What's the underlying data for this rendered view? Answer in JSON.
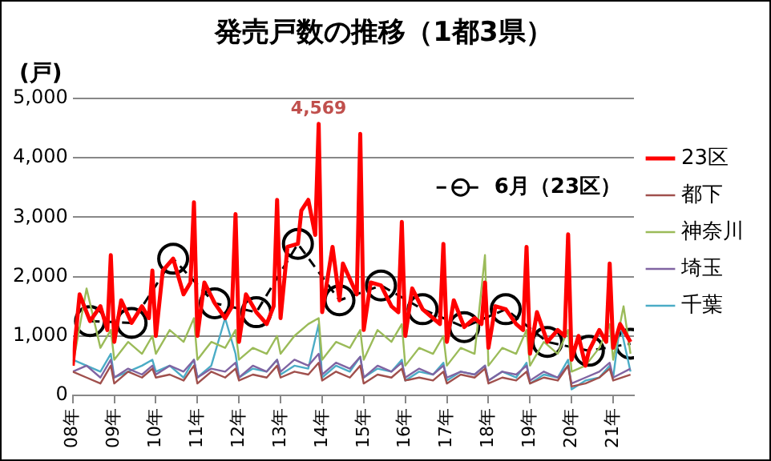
{
  "chart_data": {
    "type": "line",
    "title": "発売戸数の推移（1都3県）",
    "ylabel": "(戸)",
    "xlim": [
      "2008-01",
      "2021-07"
    ],
    "xticks": [
      {
        "value": "2008-01",
        "label": "08年"
      },
      {
        "value": "2009-01",
        "label": "09年"
      },
      {
        "value": "2010-01",
        "label": "10年"
      },
      {
        "value": "2011-01",
        "label": "11年"
      },
      {
        "value": "2012-01",
        "label": "12年"
      },
      {
        "value": "2013-01",
        "label": "13年"
      },
      {
        "value": "2014-01",
        "label": "14年"
      },
      {
        "value": "2015-01",
        "label": "15年"
      },
      {
        "value": "2016-01",
        "label": "16年"
      },
      {
        "value": "2017-01",
        "label": "17年"
      },
      {
        "value": "2018-01",
        "label": "18年"
      },
      {
        "value": "2019-01",
        "label": "19年"
      },
      {
        "value": "2020-01",
        "label": "20年"
      },
      {
        "value": "2021-01",
        "label": "21年"
      }
    ],
    "ylim": [
      0,
      5000
    ],
    "yticks": [
      {
        "value": 0,
        "label": "0"
      },
      {
        "value": 1000,
        "label": "1,000"
      },
      {
        "value": 2000,
        "label": "2,000"
      },
      {
        "value": 3000,
        "label": "3,000"
      },
      {
        "value": 4000,
        "label": "4,000"
      },
      {
        "value": 5000,
        "label": "5,000"
      }
    ],
    "grid": "y",
    "legend": "right",
    "marker": "none",
    "annotations": [
      {
        "text": "4,569",
        "x": "2013-12",
        "y": 4569
      }
    ],
    "series": [
      {
        "name": "23区",
        "color": "#ff0000",
        "x": [
          "2008-01",
          "2008-03",
          "2008-06",
          "2008-09",
          "2008-11",
          "2008-12",
          "2009-01",
          "2009-03",
          "2009-06",
          "2009-09",
          "2009-11",
          "2009-12",
          "2010-01",
          "2010-03",
          "2010-06",
          "2010-09",
          "2010-11",
          "2010-12",
          "2011-01",
          "2011-03",
          "2011-06",
          "2011-09",
          "2011-11",
          "2011-12",
          "2012-01",
          "2012-03",
          "2012-06",
          "2012-09",
          "2012-11",
          "2012-12",
          "2013-01",
          "2013-03",
          "2013-06",
          "2013-07",
          "2013-09",
          "2013-11",
          "2013-12",
          "2014-01",
          "2014-04",
          "2014-06",
          "2014-07",
          "2014-11",
          "2014-12",
          "2015-01",
          "2015-03",
          "2015-06",
          "2015-09",
          "2015-11",
          "2015-12",
          "2016-01",
          "2016-03",
          "2016-06",
          "2016-09",
          "2016-11",
          "2016-12",
          "2017-01",
          "2017-03",
          "2017-06",
          "2017-09",
          "2017-11",
          "2017-12",
          "2018-01",
          "2018-03",
          "2018-06",
          "2018-09",
          "2018-11",
          "2018-12",
          "2019-01",
          "2019-03",
          "2019-06",
          "2019-09",
          "2019-11",
          "2019-12",
          "2020-01",
          "2020-03",
          "2020-05",
          "2020-06",
          "2020-09",
          "2020-11",
          "2020-12",
          "2021-01",
          "2021-03",
          "2021-06"
        ],
        "values": [
          500,
          1700,
          1250,
          1500,
          1100,
          2360,
          900,
          1600,
          1220,
          1500,
          1300,
          2100,
          1000,
          2100,
          2300,
          1700,
          1900,
          3250,
          1000,
          1900,
          1550,
          1300,
          1500,
          3050,
          900,
          1700,
          1400,
          1200,
          1500,
          3290,
          1300,
          2500,
          2550,
          3110,
          3290,
          2700,
          4569,
          1400,
          2500,
          1600,
          2220,
          1700,
          4400,
          1100,
          1900,
          1850,
          1500,
          1400,
          2920,
          1000,
          1800,
          1450,
          1300,
          1200,
          2550,
          900,
          1600,
          1150,
          1300,
          1200,
          1900,
          800,
          1500,
          1450,
          1200,
          1100,
          2500,
          700,
          1400,
          900,
          1100,
          1000,
          2710,
          600,
          1000,
          500,
          750,
          1100,
          900,
          2220,
          800,
          1200,
          900
        ]
      },
      {
        "name": "都下",
        "color": "#a0504d",
        "x": [
          "2008-01",
          "2008-05",
          "2008-09",
          "2008-12",
          "2009-01",
          "2009-05",
          "2009-09",
          "2009-12",
          "2010-01",
          "2010-05",
          "2010-09",
          "2010-12",
          "2011-01",
          "2011-05",
          "2011-09",
          "2011-12",
          "2012-01",
          "2012-05",
          "2012-09",
          "2012-12",
          "2013-01",
          "2013-05",
          "2013-09",
          "2013-12",
          "2014-01",
          "2014-05",
          "2014-09",
          "2014-12",
          "2015-01",
          "2015-05",
          "2015-09",
          "2015-12",
          "2016-01",
          "2016-05",
          "2016-09",
          "2016-12",
          "2017-01",
          "2017-05",
          "2017-09",
          "2017-12",
          "2018-01",
          "2018-05",
          "2018-09",
          "2018-12",
          "2019-01",
          "2019-05",
          "2019-09",
          "2019-12",
          "2020-01",
          "2020-05",
          "2020-09",
          "2020-12",
          "2021-01",
          "2021-06"
        ],
        "values": [
          400,
          300,
          200,
          500,
          200,
          400,
          300,
          450,
          300,
          350,
          250,
          500,
          200,
          400,
          300,
          450,
          250,
          350,
          300,
          500,
          300,
          400,
          350,
          550,
          250,
          400,
          300,
          500,
          200,
          350,
          300,
          450,
          250,
          300,
          250,
          400,
          200,
          350,
          300,
          450,
          200,
          300,
          250,
          400,
          200,
          300,
          250,
          500,
          150,
          200,
          300,
          450,
          250,
          350
        ]
      },
      {
        "name": "神奈川",
        "color": "#9bbb59",
        "x": [
          "2008-01",
          "2008-05",
          "2008-09",
          "2008-12",
          "2009-01",
          "2009-05",
          "2009-09",
          "2009-12",
          "2010-01",
          "2010-05",
          "2010-09",
          "2010-12",
          "2011-01",
          "2011-05",
          "2011-09",
          "2011-12",
          "2012-01",
          "2012-05",
          "2012-09",
          "2012-12",
          "2013-01",
          "2013-05",
          "2013-09",
          "2013-12",
          "2014-01",
          "2014-05",
          "2014-09",
          "2014-12",
          "2015-01",
          "2015-05",
          "2015-09",
          "2015-12",
          "2016-01",
          "2016-05",
          "2016-09",
          "2016-12",
          "2017-01",
          "2017-05",
          "2017-09",
          "2017-12",
          "2018-01",
          "2018-05",
          "2018-09",
          "2018-12",
          "2019-01",
          "2019-05",
          "2019-09",
          "2019-12",
          "2020-01",
          "2020-05",
          "2020-09",
          "2020-12",
          "2021-01",
          "2021-04",
          "2021-06"
        ],
        "values": [
          500,
          1800,
          800,
          1100,
          600,
          900,
          700,
          1000,
          700,
          1100,
          900,
          1300,
          600,
          900,
          800,
          1100,
          600,
          800,
          700,
          1000,
          700,
          1000,
          1200,
          1300,
          600,
          900,
          800,
          1100,
          600,
          1100,
          900,
          1200,
          500,
          800,
          700,
          1000,
          500,
          800,
          700,
          2360,
          500,
          800,
          700,
          1100,
          500,
          900,
          700,
          1100,
          400,
          500,
          800,
          1200,
          600,
          1500,
          700
        ]
      },
      {
        "name": "埼玉",
        "color": "#8064a2",
        "x": [
          "2008-01",
          "2008-05",
          "2008-09",
          "2008-12",
          "2009-01",
          "2009-05",
          "2009-09",
          "2009-12",
          "2010-01",
          "2010-05",
          "2010-09",
          "2010-12",
          "2011-01",
          "2011-05",
          "2011-09",
          "2011-12",
          "2012-01",
          "2012-05",
          "2012-09",
          "2012-12",
          "2013-01",
          "2013-05",
          "2013-09",
          "2013-12",
          "2014-01",
          "2014-05",
          "2014-09",
          "2014-12",
          "2015-01",
          "2015-05",
          "2015-09",
          "2015-12",
          "2016-01",
          "2016-05",
          "2016-09",
          "2016-12",
          "2017-01",
          "2017-05",
          "2017-09",
          "2017-12",
          "2018-01",
          "2018-05",
          "2018-09",
          "2018-12",
          "2019-01",
          "2019-05",
          "2019-09",
          "2019-12",
          "2020-01",
          "2020-05",
          "2020-09",
          "2020-12",
          "2021-01",
          "2021-06"
        ],
        "values": [
          400,
          500,
          300,
          600,
          300,
          450,
          350,
          500,
          350,
          500,
          400,
          600,
          300,
          450,
          400,
          550,
          300,
          500,
          400,
          600,
          400,
          600,
          500,
          700,
          350,
          550,
          450,
          650,
          300,
          500,
          400,
          550,
          300,
          450,
          350,
          500,
          300,
          400,
          350,
          500,
          250,
          400,
          350,
          500,
          250,
          400,
          300,
          500,
          200,
          300,
          400,
          550,
          300,
          450
        ]
      },
      {
        "name": "千葉",
        "color": "#4bacc6",
        "x": [
          "2008-01",
          "2008-05",
          "2008-09",
          "2008-12",
          "2009-01",
          "2009-05",
          "2009-09",
          "2009-12",
          "2010-01",
          "2010-05",
          "2010-09",
          "2010-12",
          "2011-01",
          "2011-05",
          "2011-09",
          "2011-12",
          "2012-01",
          "2012-05",
          "2012-09",
          "2012-12",
          "2013-01",
          "2013-05",
          "2013-09",
          "2013-12",
          "2014-01",
          "2014-05",
          "2014-09",
          "2014-12",
          "2015-01",
          "2015-05",
          "2015-09",
          "2015-12",
          "2016-01",
          "2016-05",
          "2016-09",
          "2016-12",
          "2017-01",
          "2017-05",
          "2017-09",
          "2017-12",
          "2018-01",
          "2018-05",
          "2018-09",
          "2018-12",
          "2019-01",
          "2019-05",
          "2019-09",
          "2019-12",
          "2020-01",
          "2020-05",
          "2020-09",
          "2020-12",
          "2021-01",
          "2021-03",
          "2021-06"
        ],
        "values": [
          600,
          500,
          400,
          700,
          300,
          400,
          500,
          600,
          400,
          500,
          300,
          600,
          300,
          500,
          1300,
          700,
          300,
          450,
          400,
          600,
          350,
          500,
          450,
          1200,
          300,
          500,
          400,
          650,
          300,
          450,
          400,
          600,
          250,
          400,
          350,
          550,
          250,
          400,
          350,
          500,
          250,
          400,
          300,
          550,
          200,
          350,
          300,
          600,
          100,
          250,
          300,
          500,
          300,
          1200,
          400
        ]
      },
      {
        "name": "6月（23区）",
        "color": "#000000",
        "marker": "circle",
        "line_style": "dashed",
        "x": [
          "2008-06",
          "2009-06",
          "2010-06",
          "2011-06",
          "2012-06",
          "2013-06",
          "2014-06",
          "2015-06",
          "2016-06",
          "2017-06",
          "2018-06",
          "2019-06",
          "2020-06",
          "2021-06"
        ],
        "values": [
          1250,
          1220,
          2300,
          1550,
          1400,
          2550,
          1600,
          1850,
          1450,
          1150,
          1450,
          900,
          750,
          870
        ]
      }
    ]
  }
}
